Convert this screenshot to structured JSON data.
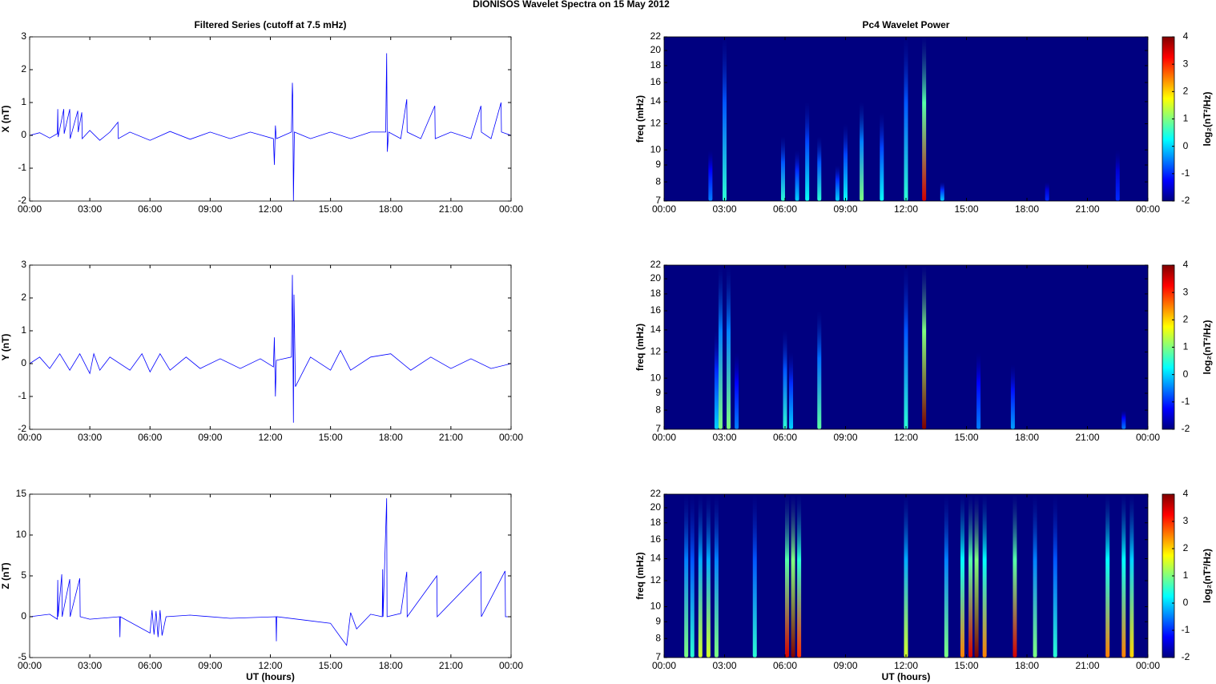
{
  "title": "DIONISOS Wavelet Spectra on 15 May      2012",
  "chart_data": [
    {
      "type": "line",
      "title": "Filtered Series (cutoff at 7.5 mHz)",
      "ylabel": "X (nT)",
      "color": "#0000ff",
      "xlim": [
        0,
        24
      ],
      "xticks": [
        {
          "value": 0,
          "label": "00:00"
        },
        {
          "value": 3,
          "label": "03:00"
        },
        {
          "value": 6,
          "label": "06:00"
        },
        {
          "value": 9,
          "label": "09:00"
        },
        {
          "value": 12,
          "label": "12:00"
        },
        {
          "value": 15,
          "label": "15:00"
        },
        {
          "value": 18,
          "label": "18:00"
        },
        {
          "value": 21,
          "label": "21:00"
        },
        {
          "value": 24,
          "label": "00:00"
        }
      ],
      "ylim": [
        -2,
        3
      ],
      "yticks": [
        -2,
        -1,
        0,
        1,
        2,
        3
      ],
      "x": [
        0,
        0.5,
        1.0,
        1.38,
        1.4,
        1.42,
        1.7,
        1.72,
        2.0,
        2.02,
        2.4,
        2.42,
        2.6,
        2.62,
        3.0,
        3.5,
        4.0,
        4.4,
        4.42,
        5.0,
        6.0,
        7.0,
        8.0,
        9.0,
        10.0,
        11.0,
        12.15,
        12.2,
        12.25,
        12.3,
        13.05,
        13.1,
        13.12,
        13.15,
        13.2,
        14.0,
        15.0,
        16.0,
        17.0,
        17.75,
        17.8,
        17.83,
        17.9,
        18.5,
        18.8,
        18.82,
        19.5,
        20.2,
        20.22,
        21.0,
        22.0,
        22.5,
        22.52,
        23.0,
        23.5,
        23.52,
        24
      ],
      "values": [
        0,
        0.08,
        -0.08,
        0.05,
        0.8,
        -0.05,
        0.8,
        0.05,
        0.8,
        -0.1,
        0.75,
        0.1,
        0.7,
        -0.1,
        0.15,
        -0.15,
        0.1,
        0.4,
        -0.1,
        0.1,
        -0.15,
        0.12,
        -0.12,
        0.1,
        -0.1,
        0.1,
        -0.1,
        -0.9,
        0.3,
        -0.1,
        0.1,
        1.6,
        1.2,
        -2,
        0.1,
        -0.1,
        0.1,
        -0.1,
        0.1,
        0.1,
        2.5,
        -0.5,
        0.1,
        -0.1,
        1.1,
        0.1,
        -0.1,
        0.9,
        -0.1,
        0.1,
        -0.1,
        0.9,
        0.1,
        -0.1,
        1.0,
        0.1,
        0
      ]
    },
    {
      "type": "heatmap",
      "title": "Pc4 Wavelet Power",
      "ylabel": "freq (mHz)",
      "yscale": "log",
      "colorscale": "jet",
      "xlim": [
        0,
        24
      ],
      "xticks": [
        {
          "value": 0,
          "label": "00:00"
        },
        {
          "value": 3,
          "label": "03:00"
        },
        {
          "value": 6,
          "label": "06:00"
        },
        {
          "value": 9,
          "label": "09:00"
        },
        {
          "value": 12,
          "label": "12:00"
        },
        {
          "value": 15,
          "label": "15:00"
        },
        {
          "value": 18,
          "label": "18:00"
        },
        {
          "value": 21,
          "label": "21:00"
        },
        {
          "value": 24,
          "label": "00:00"
        }
      ],
      "ylim": [
        7,
        22
      ],
      "yticks": [
        7,
        8,
        9,
        10,
        12,
        14,
        16,
        18,
        20,
        22
      ],
      "clim": [
        -2,
        4
      ],
      "cticks": [
        -2,
        -1,
        0,
        1,
        2,
        3,
        4
      ],
      "clabel": "log₂(nT²/Hz)",
      "x": [
        2.3,
        3.0,
        5.9,
        6.6,
        7.1,
        7.7,
        8.6,
        9.0,
        9.8,
        10.8,
        12.0,
        12.9,
        13.8,
        19.0,
        22.5
      ],
      "values": [
        -0.5,
        0.5,
        0.5,
        0,
        0.3,
        0.5,
        0,
        0.3,
        1,
        0.3,
        0.5,
        3.5,
        0,
        -1,
        -1
      ],
      "ytop": [
        10,
        22,
        11,
        10,
        14,
        11,
        9,
        12,
        14,
        13,
        22,
        22,
        8,
        8,
        10
      ]
    },
    {
      "type": "line",
      "ylabel": "Y (nT)",
      "color": "#0000ff",
      "xlim": [
        0,
        24
      ],
      "xticks": [
        {
          "value": 0,
          "label": "00:00"
        },
        {
          "value": 3,
          "label": "03:00"
        },
        {
          "value": 6,
          "label": "06:00"
        },
        {
          "value": 9,
          "label": "09:00"
        },
        {
          "value": 12,
          "label": "12:00"
        },
        {
          "value": 15,
          "label": "15:00"
        },
        {
          "value": 18,
          "label": "18:00"
        },
        {
          "value": 21,
          "label": "21:00"
        },
        {
          "value": 24,
          "label": "00:00"
        }
      ],
      "ylim": [
        -2,
        3
      ],
      "yticks": [
        -2,
        -1,
        0,
        1,
        2,
        3
      ],
      "x": [
        0,
        0.5,
        1.0,
        1.5,
        2.0,
        2.5,
        3.0,
        3.2,
        3.5,
        4.0,
        5.0,
        5.6,
        6.0,
        6.5,
        7.0,
        7.8,
        8.5,
        9.5,
        10.5,
        11.5,
        12.15,
        12.2,
        12.25,
        12.3,
        13.05,
        13.1,
        13.15,
        13.18,
        13.25,
        14.0,
        15.0,
        15.5,
        16.0,
        17.0,
        18.0,
        19.0,
        20.0,
        21.0,
        22.0,
        23.0,
        24
      ],
      "values": [
        0,
        0.2,
        -0.15,
        0.3,
        -0.2,
        0.3,
        -0.3,
        0.3,
        -0.2,
        0.2,
        -0.2,
        0.3,
        -0.25,
        0.3,
        -0.2,
        0.2,
        -0.15,
        0.15,
        -0.15,
        0.15,
        -0.1,
        0.8,
        -1.0,
        0.1,
        0.2,
        2.7,
        -1.8,
        2.1,
        -0.7,
        0.2,
        -0.2,
        0.4,
        -0.2,
        0.2,
        0.3,
        -0.2,
        0.2,
        -0.15,
        0.15,
        -0.15,
        0
      ]
    },
    {
      "type": "heatmap",
      "ylabel": "freq (mHz)",
      "yscale": "log",
      "colorscale": "jet",
      "xlim": [
        0,
        24
      ],
      "xticks": [
        {
          "value": 0,
          "label": "00:00"
        },
        {
          "value": 3,
          "label": "03:00"
        },
        {
          "value": 6,
          "label": "06:00"
        },
        {
          "value": 9,
          "label": "09:00"
        },
        {
          "value": 12,
          "label": "12:00"
        },
        {
          "value": 15,
          "label": "15:00"
        },
        {
          "value": 18,
          "label": "18:00"
        },
        {
          "value": 21,
          "label": "21:00"
        },
        {
          "value": 24,
          "label": "00:00"
        }
      ],
      "ylim": [
        7,
        22
      ],
      "yticks": [
        7,
        8,
        9,
        10,
        12,
        14,
        16,
        18,
        20,
        22
      ],
      "clim": [
        -2,
        4
      ],
      "cticks": [
        -2,
        -1,
        0,
        1,
        2,
        3,
        4
      ],
      "clabel": "log₂(nT²/Hz)",
      "x": [
        2.6,
        2.8,
        3.2,
        3.6,
        6.0,
        6.3,
        7.7,
        12.0,
        12.9,
        15.6,
        17.3,
        22.8
      ],
      "values": [
        0,
        1,
        1,
        -0.5,
        0.5,
        0,
        0.8,
        0.5,
        4,
        -0.5,
        -0.3,
        -0.5
      ],
      "ytop": [
        14,
        22,
        22,
        12,
        14,
        12,
        16,
        22,
        22,
        12,
        11,
        8
      ]
    },
    {
      "type": "line",
      "ylabel": "Z (nT)",
      "xlabel": "UT (hours)",
      "color": "#0000ff",
      "xlim": [
        0,
        24
      ],
      "xticks": [
        {
          "value": 0,
          "label": "00:00"
        },
        {
          "value": 3,
          "label": "03:00"
        },
        {
          "value": 6,
          "label": "06:00"
        },
        {
          "value": 9,
          "label": "09:00"
        },
        {
          "value": 12,
          "label": "12:00"
        },
        {
          "value": 15,
          "label": "15:00"
        },
        {
          "value": 18,
          "label": "18:00"
        },
        {
          "value": 21,
          "label": "21:00"
        },
        {
          "value": 24,
          "label": "00:00"
        }
      ],
      "ylim": [
        -5,
        15
      ],
      "yticks": [
        -5,
        0,
        5,
        10,
        15
      ],
      "x": [
        0,
        1.0,
        1.38,
        1.4,
        1.42,
        1.6,
        1.62,
        2.0,
        2.02,
        2.5,
        2.52,
        3.0,
        4.48,
        4.5,
        4.52,
        6.0,
        6.1,
        6.2,
        6.3,
        6.4,
        6.5,
        6.6,
        6.8,
        8.0,
        10.0,
        12.28,
        12.3,
        12.32,
        15.0,
        15.5,
        15.8,
        16.0,
        16.3,
        17.0,
        17.58,
        17.6,
        17.62,
        17.8,
        17.82,
        18.5,
        18.8,
        18.82,
        20.3,
        20.32,
        22.5,
        22.52,
        23.7,
        23.72,
        24
      ],
      "values": [
        0,
        0.3,
        -0.3,
        4.5,
        0,
        5.2,
        0,
        4.6,
        0,
        4.7,
        0,
        -0.3,
        0,
        -2.5,
        0,
        -2,
        0.8,
        -2.2,
        0.7,
        -2.5,
        0.8,
        -2.3,
        0,
        0.2,
        -0.2,
        0,
        -3,
        0,
        -0.8,
        -2.5,
        -3.5,
        0.5,
        -1.5,
        0.3,
        0,
        5.8,
        0,
        14.5,
        0,
        0.4,
        5.5,
        0,
        5,
        0,
        5.5,
        0,
        5.6,
        0,
        0
      ]
    },
    {
      "type": "heatmap",
      "ylabel": "freq (mHz)",
      "xlabel": "UT (hours)",
      "yscale": "log",
      "colorscale": "jet",
      "xlim": [
        0,
        24
      ],
      "xticks": [
        {
          "value": 0,
          "label": "00:00"
        },
        {
          "value": 3,
          "label": "03:00"
        },
        {
          "value": 6,
          "label": "06:00"
        },
        {
          "value": 9,
          "label": "09:00"
        },
        {
          "value": 12,
          "label": "12:00"
        },
        {
          "value": 15,
          "label": "15:00"
        },
        {
          "value": 18,
          "label": "18:00"
        },
        {
          "value": 21,
          "label": "21:00"
        },
        {
          "value": 24,
          "label": "00:00"
        }
      ],
      "ylim": [
        7,
        22
      ],
      "yticks": [
        7,
        8,
        9,
        10,
        12,
        14,
        16,
        18,
        20,
        22
      ],
      "clim": [
        -2,
        4
      ],
      "cticks": [
        -2,
        -1,
        0,
        1,
        2,
        3,
        4
      ],
      "clabel": "log₂(nT²/Hz)",
      "x": [
        1.1,
        1.4,
        1.8,
        2.2,
        2.6,
        4.5,
        6.1,
        6.4,
        6.7,
        12.0,
        14.0,
        14.8,
        15.2,
        15.5,
        15.9,
        17.4,
        18.4,
        19.4,
        22.0,
        22.8,
        23.2
      ],
      "values": [
        1,
        0.5,
        1.5,
        1.5,
        1,
        0.5,
        3.5,
        4,
        3,
        1.5,
        1,
        2.5,
        3.5,
        4,
        2.5,
        3.5,
        1,
        0.5,
        2.5,
        2.5,
        2
      ],
      "ytop": [
        22,
        22,
        22,
        22,
        22,
        22,
        22,
        22,
        22,
        22,
        22,
        22,
        22,
        22,
        22,
        22,
        22,
        22,
        22,
        22,
        22
      ]
    }
  ]
}
